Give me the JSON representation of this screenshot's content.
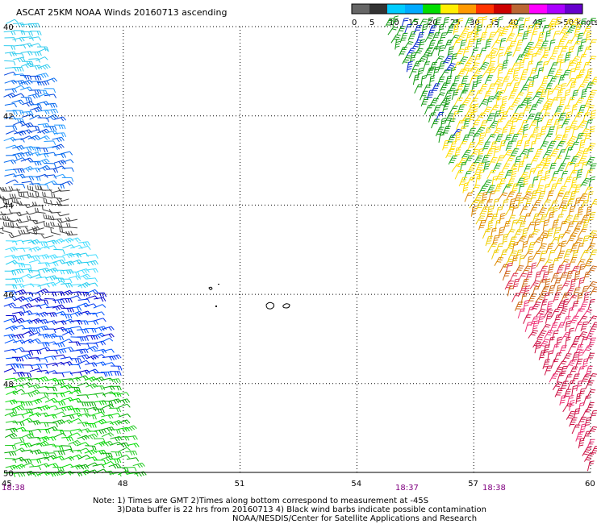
{
  "title": "ASCAT 25KM NOAA Winds 20160713 ascending",
  "legend": {
    "labels": [
      "0",
      "5",
      "10",
      "15",
      "20",
      "25",
      "30",
      "35",
      "40",
      "45",
      ">50 knots"
    ],
    "colors": [
      "#666666",
      "#333333",
      "#00ccff",
      "#00aaff",
      "#00dd00",
      "#ffee00",
      "#ff9900",
      "#ff3300",
      "#cc0000",
      "#bb6633",
      "#ff00ff",
      "#aa00ff",
      "#6600cc"
    ]
  },
  "axes": {
    "lat_labels": [
      "40",
      "42",
      "44",
      "46",
      "48",
      "50"
    ],
    "lon_labels": [
      "45",
      "48",
      "51",
      "54",
      "57",
      "60"
    ]
  },
  "times": [
    "18:38",
    "18:37",
    "18:38"
  ],
  "notes": {
    "line1": "Note: 1) Times are GMT 2)Times along bottom correspond to measurement at -45S",
    "line2": "3)Data buffer is 22 hrs from 20160713 4) Black wind barbs indicate possible contamination",
    "line3": "NOAA/NESDIS/Center for Satellite Applications and Research"
  },
  "colors": {
    "time_label": "#800080",
    "grid": "#000000"
  }
}
